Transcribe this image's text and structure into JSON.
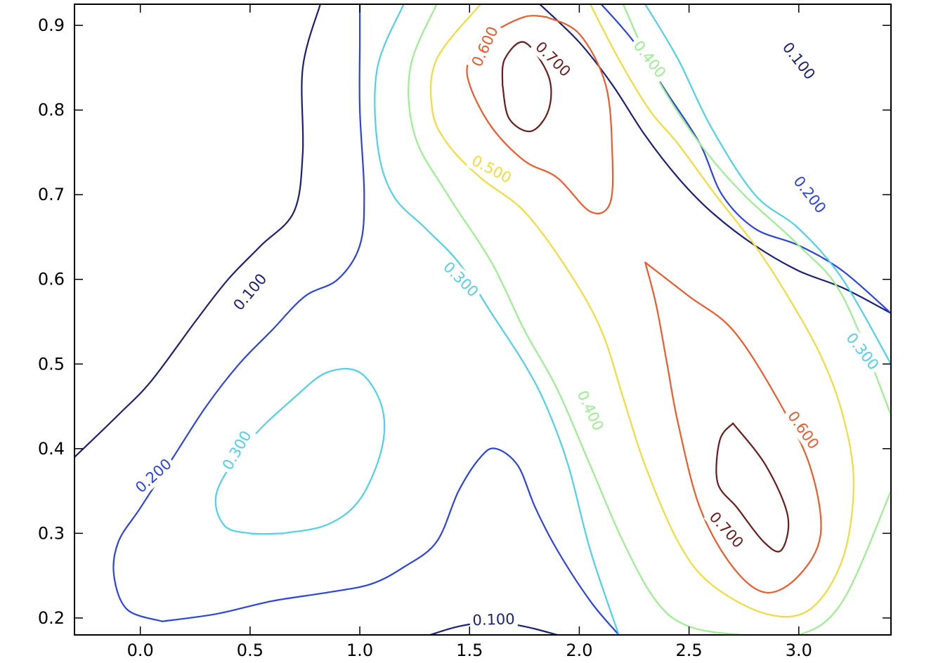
{
  "chart_data": {
    "type": "contour",
    "title": "",
    "xlabel": "",
    "ylabel": "",
    "xlim": [
      -0.3,
      3.42
    ],
    "ylim": [
      0.18,
      0.925
    ],
    "grid": false,
    "legend": "none",
    "x_ticks": [
      0.0,
      0.5,
      1.0,
      1.5,
      2.0,
      2.5,
      3.0
    ],
    "x_tick_labels": [
      "0.0",
      "0.5",
      "1.0",
      "1.5",
      "2.0",
      "2.5",
      "3.0"
    ],
    "y_ticks": [
      0.2,
      0.3,
      0.4,
      0.5,
      0.6,
      0.7,
      0.8,
      0.9
    ],
    "y_tick_labels": [
      "0.2",
      "0.3",
      "0.4",
      "0.5",
      "0.6",
      "0.7",
      "0.8",
      "0.9"
    ],
    "levels": [
      {
        "value": 0.1,
        "label": "0.100",
        "color": "#1a1f7a"
      },
      {
        "value": 0.2,
        "label": "0.200",
        "color": "#2a44e0"
      },
      {
        "value": 0.3,
        "label": "0.300",
        "color": "#4fd0ee"
      },
      {
        "value": 0.4,
        "label": "0.400",
        "color": "#9af08e"
      },
      {
        "value": 0.5,
        "label": "0.500",
        "color": "#f7d93b"
      },
      {
        "value": 0.6,
        "label": "0.600",
        "color": "#ee5a2a"
      },
      {
        "value": 0.7,
        "label": "0.700",
        "color": "#6e1a1a"
      }
    ],
    "contours": [
      {
        "level": 0.1,
        "points": [
          [
            -0.3,
            0.39
          ],
          [
            -0.1,
            0.44
          ],
          [
            0.05,
            0.48
          ],
          [
            0.25,
            0.55
          ],
          [
            0.4,
            0.6
          ],
          [
            0.55,
            0.64
          ],
          [
            0.7,
            0.68
          ],
          [
            0.74,
            0.75
          ],
          [
            0.74,
            0.85
          ],
          [
            0.82,
            0.925
          ]
        ]
      },
      {
        "level": 0.1,
        "points": [
          [
            1.82,
            0.925
          ],
          [
            2.0,
            0.88
          ],
          [
            2.15,
            0.83
          ],
          [
            2.3,
            0.77
          ],
          [
            2.45,
            0.72
          ],
          [
            2.6,
            0.68
          ],
          [
            2.8,
            0.64
          ],
          [
            3.0,
            0.61
          ],
          [
            3.2,
            0.59
          ],
          [
            3.42,
            0.56
          ]
        ]
      },
      {
        "level": 0.1,
        "points": [
          [
            1.32,
            0.18
          ],
          [
            1.45,
            0.19
          ],
          [
            1.6,
            0.195
          ],
          [
            1.75,
            0.19
          ],
          [
            1.9,
            0.18
          ]
        ]
      },
      {
        "level": 0.2,
        "points": [
          [
            0.1,
            0.196
          ],
          [
            0.35,
            0.205
          ],
          [
            0.6,
            0.22
          ],
          [
            0.85,
            0.23
          ],
          [
            1.05,
            0.24
          ],
          [
            1.2,
            0.26
          ],
          [
            1.35,
            0.29
          ],
          [
            1.45,
            0.35
          ],
          [
            1.55,
            0.39
          ],
          [
            1.62,
            0.4
          ],
          [
            1.72,
            0.38
          ],
          [
            1.8,
            0.33
          ],
          [
            1.9,
            0.28
          ],
          [
            2.05,
            0.22
          ],
          [
            2.18,
            0.18
          ]
        ]
      },
      {
        "level": 0.2,
        "points": [
          [
            0.1,
            0.196
          ],
          [
            -0.06,
            0.21
          ],
          [
            -0.12,
            0.25
          ],
          [
            -0.1,
            0.29
          ],
          [
            0.0,
            0.33
          ],
          [
            0.15,
            0.39
          ],
          [
            0.3,
            0.45
          ],
          [
            0.45,
            0.5
          ],
          [
            0.6,
            0.54
          ],
          [
            0.75,
            0.58
          ],
          [
            0.9,
            0.6
          ],
          [
            1.0,
            0.64
          ],
          [
            1.02,
            0.7
          ],
          [
            1.0,
            0.8
          ],
          [
            1.0,
            0.88
          ],
          [
            1.0,
            0.925
          ]
        ]
      },
      {
        "level": 0.2,
        "points": [
          [
            2.1,
            0.925
          ],
          [
            2.25,
            0.88
          ],
          [
            2.4,
            0.82
          ],
          [
            2.55,
            0.76
          ],
          [
            2.65,
            0.7
          ],
          [
            2.8,
            0.66
          ],
          [
            3.0,
            0.64
          ],
          [
            3.2,
            0.61
          ],
          [
            3.42,
            0.56
          ]
        ]
      },
      {
        "level": 0.3,
        "points": [
          [
            0.65,
            0.3
          ],
          [
            0.85,
            0.31
          ],
          [
            1.0,
            0.34
          ],
          [
            1.1,
            0.4
          ],
          [
            1.1,
            0.45
          ],
          [
            1.0,
            0.49
          ],
          [
            0.85,
            0.49
          ],
          [
            0.7,
            0.46
          ],
          [
            0.5,
            0.41
          ],
          [
            0.35,
            0.35
          ],
          [
            0.38,
            0.31
          ],
          [
            0.5,
            0.3
          ],
          [
            0.65,
            0.3
          ]
        ]
      },
      {
        "level": 0.3,
        "points": [
          [
            1.2,
            0.925
          ],
          [
            1.08,
            0.85
          ],
          [
            1.08,
            0.76
          ],
          [
            1.15,
            0.7
          ],
          [
            1.3,
            0.66
          ],
          [
            1.45,
            0.62
          ],
          [
            1.6,
            0.56
          ],
          [
            1.75,
            0.5
          ],
          [
            1.85,
            0.45
          ],
          [
            1.95,
            0.38
          ],
          [
            2.05,
            0.28
          ],
          [
            2.18,
            0.18
          ]
        ]
      },
      {
        "level": 0.3,
        "points": [
          [
            2.3,
            0.925
          ],
          [
            2.45,
            0.86
          ],
          [
            2.6,
            0.78
          ],
          [
            2.8,
            0.7
          ],
          [
            3.0,
            0.66
          ],
          [
            3.2,
            0.6
          ],
          [
            3.42,
            0.5
          ]
        ]
      },
      {
        "level": 0.4,
        "points": [
          [
            1.35,
            0.925
          ],
          [
            1.23,
            0.85
          ],
          [
            1.25,
            0.77
          ],
          [
            1.4,
            0.7
          ],
          [
            1.6,
            0.62
          ],
          [
            1.75,
            0.54
          ],
          [
            1.9,
            0.47
          ],
          [
            2.05,
            0.38
          ],
          [
            2.2,
            0.29
          ],
          [
            2.35,
            0.22
          ],
          [
            2.5,
            0.19
          ],
          [
            2.75,
            0.18
          ],
          [
            3.0,
            0.18
          ],
          [
            3.2,
            0.22
          ],
          [
            3.42,
            0.35
          ]
        ]
      },
      {
        "level": 0.4,
        "points": [
          [
            2.2,
            0.925
          ],
          [
            2.35,
            0.84
          ],
          [
            2.55,
            0.76
          ],
          [
            2.75,
            0.7
          ],
          [
            3.0,
            0.64
          ],
          [
            3.2,
            0.58
          ],
          [
            3.42,
            0.44
          ]
        ]
      },
      {
        "level": 0.5,
        "points": [
          [
            1.55,
            0.925
          ],
          [
            1.35,
            0.86
          ],
          [
            1.33,
            0.8
          ],
          [
            1.4,
            0.76
          ],
          [
            1.55,
            0.72
          ],
          [
            1.75,
            0.68
          ],
          [
            1.95,
            0.61
          ],
          [
            2.1,
            0.54
          ],
          [
            2.2,
            0.46
          ],
          [
            2.3,
            0.38
          ],
          [
            2.45,
            0.29
          ],
          [
            2.6,
            0.24
          ],
          [
            2.85,
            0.205
          ],
          [
            3.05,
            0.21
          ],
          [
            3.2,
            0.27
          ],
          [
            3.25,
            0.36
          ],
          [
            3.2,
            0.44
          ],
          [
            3.1,
            0.51
          ],
          [
            2.95,
            0.58
          ],
          [
            2.8,
            0.64
          ],
          [
            2.62,
            0.7
          ],
          [
            2.45,
            0.76
          ],
          [
            2.32,
            0.8
          ],
          [
            2.18,
            0.86
          ],
          [
            2.05,
            0.925
          ]
        ]
      },
      {
        "level": 0.6,
        "points": [
          [
            1.85,
            0.91
          ],
          [
            2.0,
            0.89
          ],
          [
            2.12,
            0.83
          ],
          [
            2.15,
            0.75
          ],
          [
            2.14,
            0.69
          ],
          [
            2.05,
            0.68
          ],
          [
            1.9,
            0.72
          ],
          [
            1.75,
            0.74
          ],
          [
            1.6,
            0.78
          ],
          [
            1.5,
            0.83
          ],
          [
            1.5,
            0.86
          ],
          [
            1.6,
            0.89
          ],
          [
            1.75,
            0.91
          ],
          [
            1.85,
            0.91
          ]
        ]
      },
      {
        "level": 0.6,
        "points": [
          [
            2.3,
            0.62
          ],
          [
            2.5,
            0.58
          ],
          [
            2.7,
            0.54
          ],
          [
            2.9,
            0.46
          ],
          [
            3.05,
            0.38
          ],
          [
            3.1,
            0.3
          ],
          [
            3.0,
            0.25
          ],
          [
            2.85,
            0.23
          ],
          [
            2.7,
            0.26
          ],
          [
            2.55,
            0.33
          ],
          [
            2.45,
            0.43
          ],
          [
            2.4,
            0.5
          ],
          [
            2.35,
            0.57
          ],
          [
            2.3,
            0.62
          ]
        ]
      },
      {
        "level": 0.7,
        "points": [
          [
            1.65,
            0.83
          ],
          [
            1.66,
            0.86
          ],
          [
            1.75,
            0.88
          ],
          [
            1.86,
            0.84
          ],
          [
            1.86,
            0.8
          ],
          [
            1.78,
            0.775
          ],
          [
            1.68,
            0.79
          ],
          [
            1.65,
            0.83
          ]
        ]
      },
      {
        "level": 0.7,
        "points": [
          [
            2.7,
            0.43
          ],
          [
            2.85,
            0.38
          ],
          [
            2.95,
            0.32
          ],
          [
            2.92,
            0.28
          ],
          [
            2.84,
            0.29
          ],
          [
            2.72,
            0.33
          ],
          [
            2.63,
            0.36
          ],
          [
            2.64,
            0.41
          ],
          [
            2.7,
            0.43
          ]
        ]
      }
    ],
    "labels": [
      {
        "text": "0.100",
        "level": 0.1,
        "x": 0.5,
        "y": 0.585,
        "angle": -50
      },
      {
        "text": "0.100",
        "level": 0.1,
        "x": 3.0,
        "y": 0.858,
        "angle": 52
      },
      {
        "text": "0.100",
        "level": 0.1,
        "x": 1.61,
        "y": 0.198,
        "angle": -2
      },
      {
        "text": "0.200",
        "level": 0.2,
        "x": 0.06,
        "y": 0.368,
        "angle": -42
      },
      {
        "text": "0.200",
        "level": 0.2,
        "x": 3.05,
        "y": 0.7,
        "angle": 52
      },
      {
        "text": "0.300",
        "level": 0.3,
        "x": 0.44,
        "y": 0.398,
        "angle": -60
      },
      {
        "text": "0.300",
        "level": 0.3,
        "x": 1.46,
        "y": 0.6,
        "angle": 45
      },
      {
        "text": "0.300",
        "level": 0.3,
        "x": 3.29,
        "y": 0.515,
        "angle": 52
      },
      {
        "text": "0.400",
        "level": 0.4,
        "x": 2.32,
        "y": 0.86,
        "angle": 52
      },
      {
        "text": "0.400",
        "level": 0.4,
        "x": 2.05,
        "y": 0.445,
        "angle": 65
      },
      {
        "text": "0.500",
        "level": 0.5,
        "x": 1.6,
        "y": 0.73,
        "angle": 28
      },
      {
        "text": "0.600",
        "level": 0.6,
        "x": 1.57,
        "y": 0.875,
        "angle": -65
      },
      {
        "text": "0.600",
        "level": 0.6,
        "x": 3.02,
        "y": 0.422,
        "angle": 55
      },
      {
        "text": "0.700",
        "level": 0.7,
        "x": 1.88,
        "y": 0.86,
        "angle": 45
      },
      {
        "text": "0.700",
        "level": 0.7,
        "x": 2.67,
        "y": 0.304,
        "angle": 48
      }
    ]
  }
}
